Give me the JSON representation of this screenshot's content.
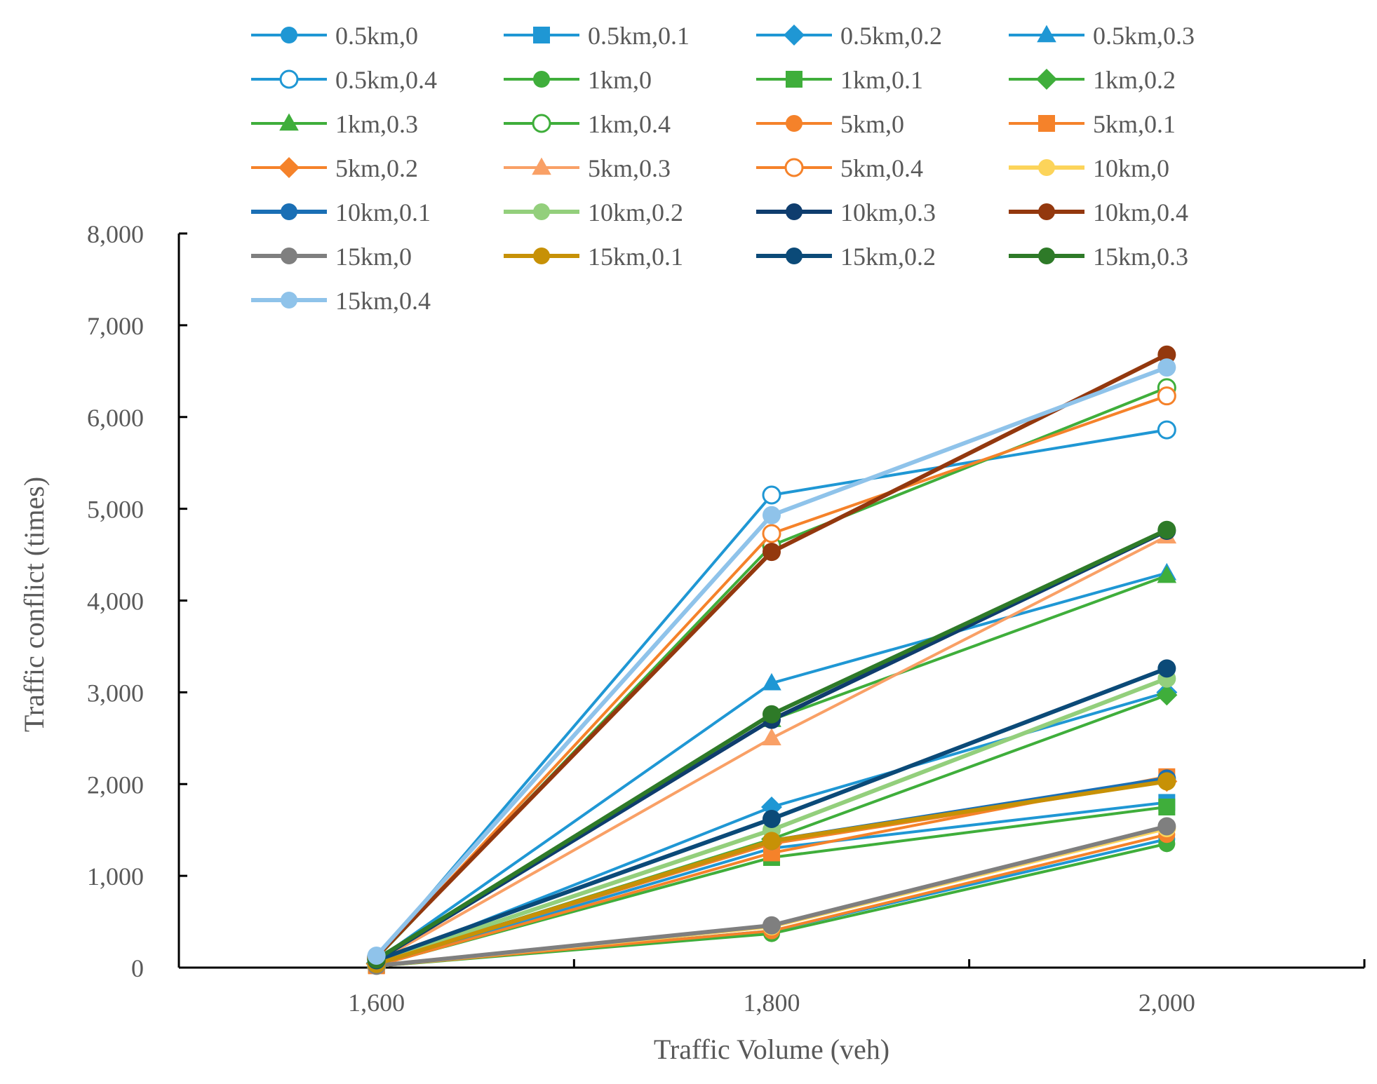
{
  "chart_data": {
    "type": "line",
    "title": "",
    "xlabel": "Traffic Volume (veh)",
    "ylabel": "Traffic conflict (times)",
    "x": [
      1600,
      1800,
      2000
    ],
    "x_tick_labels": [
      "1,600",
      "1,800",
      "2,000"
    ],
    "y_tick_labels": [
      "0",
      "1,000",
      "2,000",
      "3,000",
      "4,000",
      "5,000",
      "6,000",
      "7,000",
      "8,000"
    ],
    "y_ticks": [
      0,
      1000,
      2000,
      3000,
      4000,
      5000,
      6000,
      7000,
      8000
    ],
    "xlim": [
      1500,
      2100
    ],
    "ylim": [
      0,
      8000
    ],
    "legend_position": "top",
    "series": [
      {
        "name": "0.5km,0",
        "color": "#1f97d4",
        "marker": "circle",
        "width": "thin",
        "values": [
          20,
          400,
          1400
        ]
      },
      {
        "name": "0.5km,0.1",
        "color": "#1f97d4",
        "marker": "square",
        "width": "thin",
        "values": [
          30,
          1300,
          1800
        ]
      },
      {
        "name": "0.5km,0.2",
        "color": "#1f97d4",
        "marker": "diamond",
        "width": "thin",
        "values": [
          50,
          1750,
          3000
        ]
      },
      {
        "name": "0.5km,0.3",
        "color": "#1f97d4",
        "marker": "triangle",
        "width": "thin",
        "values": [
          80,
          3100,
          4300
        ]
      },
      {
        "name": "0.5km,0.4",
        "color": "#1f97d4",
        "marker": "circle-open",
        "width": "thin",
        "values": [
          110,
          5150,
          5860
        ]
      },
      {
        "name": "1km,0",
        "color": "#3fae3b",
        "marker": "circle",
        "width": "thin",
        "values": [
          15,
          370,
          1350
        ]
      },
      {
        "name": "1km,0.1",
        "color": "#3fae3b",
        "marker": "square",
        "width": "thin",
        "values": [
          25,
          1200,
          1750
        ]
      },
      {
        "name": "1km,0.2",
        "color": "#3fae3b",
        "marker": "diamond",
        "width": "thin",
        "values": [
          45,
          1400,
          2970
        ]
      },
      {
        "name": "1km,0.3",
        "color": "#3fae3b",
        "marker": "triangle",
        "width": "thin",
        "values": [
          70,
          2700,
          4270
        ]
      },
      {
        "name": "1km,0.4",
        "color": "#3fae3b",
        "marker": "circle-open",
        "width": "thin",
        "values": [
          100,
          4600,
          6320
        ]
      },
      {
        "name": "5km,0",
        "color": "#f5822a",
        "marker": "circle",
        "width": "thin",
        "values": [
          15,
          400,
          1450
        ]
      },
      {
        "name": "5km,0.1",
        "color": "#f5822a",
        "marker": "square",
        "width": "thin",
        "values": [
          20,
          1250,
          2080
        ]
      },
      {
        "name": "5km,0.2",
        "color": "#f5822a",
        "marker": "diamond",
        "width": "thin",
        "values": [
          40,
          1350,
          2030
        ]
      },
      {
        "name": "5km,0.3",
        "color": "#f9a066",
        "marker": "triangle",
        "width": "thin",
        "values": [
          60,
          2500,
          4700
        ]
      },
      {
        "name": "5km,0.4",
        "color": "#f5822a",
        "marker": "circle-open",
        "width": "thin",
        "values": [
          100,
          4730,
          6230
        ]
      },
      {
        "name": "10km,0",
        "color": "#fcd45a",
        "marker": "circle",
        "width": "thick",
        "values": [
          20,
          450,
          1520
        ]
      },
      {
        "name": "10km,0.1",
        "color": "#1a6fb5",
        "marker": "circle",
        "width": "thick",
        "values": [
          40,
          1380,
          2060
        ]
      },
      {
        "name": "10km,0.2",
        "color": "#93cf7c",
        "marker": "circle",
        "width": "thick",
        "values": [
          60,
          1500,
          3150
        ]
      },
      {
        "name": "10km,0.3",
        "color": "#0f3d6e",
        "marker": "circle",
        "width": "thick",
        "values": [
          80,
          2700,
          4760
        ]
      },
      {
        "name": "10km,0.4",
        "color": "#93380e",
        "marker": "circle",
        "width": "thick",
        "values": [
          120,
          4530,
          6680
        ]
      },
      {
        "name": "15km,0",
        "color": "#7f7f7f",
        "marker": "circle",
        "width": "thick",
        "values": [
          20,
          460,
          1540
        ]
      },
      {
        "name": "15km,0.1",
        "color": "#c79106",
        "marker": "circle",
        "width": "thick",
        "values": [
          40,
          1380,
          2030
        ]
      },
      {
        "name": "15km,0.2",
        "color": "#0b4a78",
        "marker": "circle",
        "width": "thick",
        "values": [
          80,
          1620,
          3260
        ]
      },
      {
        "name": "15km,0.3",
        "color": "#2e7a28",
        "marker": "circle",
        "width": "thick",
        "values": [
          90,
          2760,
          4770
        ]
      },
      {
        "name": "15km,0.4",
        "color": "#8fc3ea",
        "marker": "circle",
        "width": "thick",
        "values": [
          130,
          4930,
          6540
        ]
      }
    ]
  }
}
